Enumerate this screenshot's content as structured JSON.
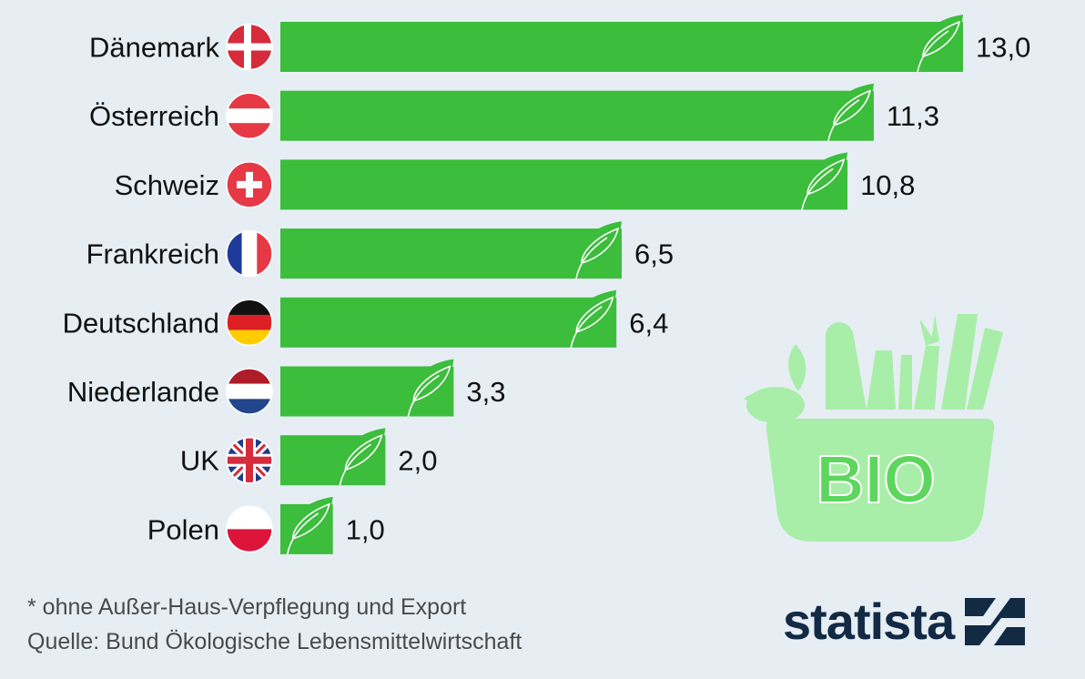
{
  "chart_data": {
    "type": "bar",
    "orientation": "horizontal",
    "categories": [
      "Dänemark",
      "Österreich",
      "Schweiz",
      "Frankreich",
      "Deutschland",
      "Niederlande",
      "UK",
      "Polen"
    ],
    "values": [
      13.0,
      11.3,
      10.8,
      6.5,
      6.4,
      3.3,
      2.0,
      1.0
    ],
    "value_labels": [
      "13,0",
      "11,3",
      "10,8",
      "6,5",
      "6,4",
      "3,3",
      "2,0",
      "1,0"
    ],
    "flags": [
      "flag-denmark-icon",
      "flag-austria-icon",
      "flag-switzerland-icon",
      "flag-france-icon",
      "flag-germany-icon",
      "flag-netherlands-icon",
      "flag-uk-icon",
      "flag-poland-icon"
    ],
    "bar_color": "#3cbd3c",
    "xlim": [
      0,
      13.0
    ],
    "grid": false
  },
  "footnote": "* ohne Außer-Haus-Verpflegung und Export",
  "source": "Quelle: Bund Ökologische Lebensmittelwirtschaft",
  "brand": "statista",
  "graphic": {
    "text": "BIO",
    "color": "#a8eea8"
  }
}
